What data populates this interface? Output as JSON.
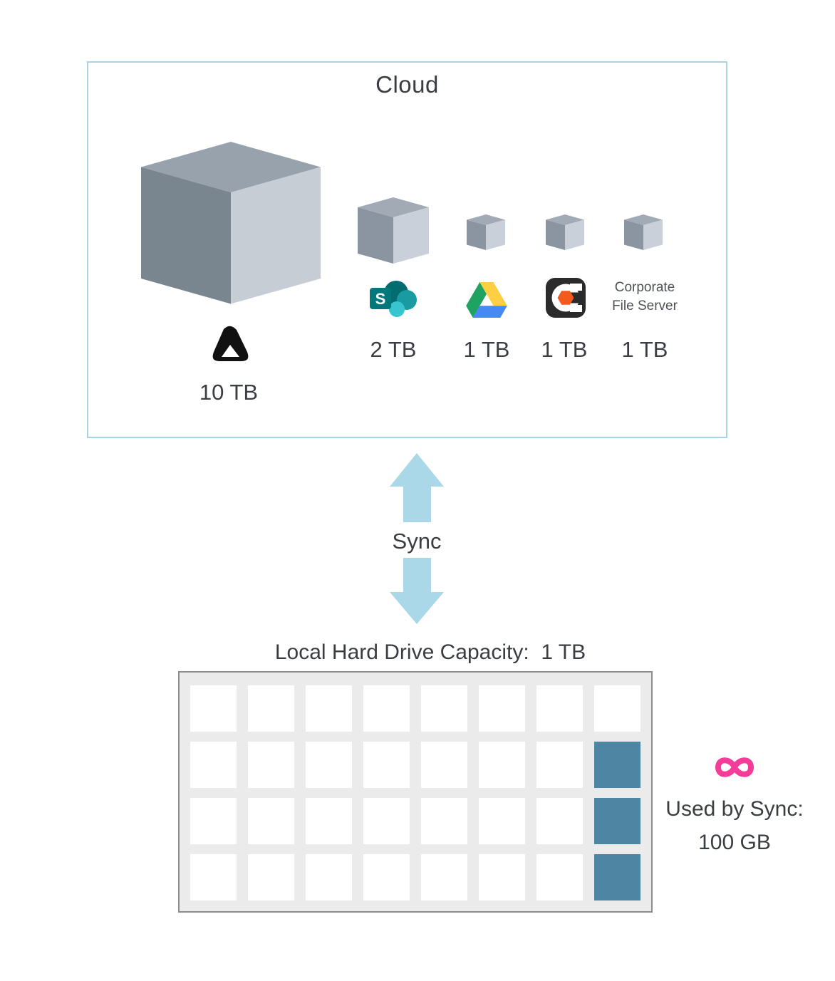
{
  "cloud": {
    "title": "Cloud",
    "providers": [
      {
        "name": "primary-cloud",
        "icon": "delta-triangle-logo",
        "capacity": "10 TB",
        "cube_size": "xl"
      },
      {
        "name": "sharepoint",
        "icon": "sharepoint-logo",
        "capacity": "2 TB",
        "cube_size": "md"
      },
      {
        "name": "google-drive",
        "icon": "google-drive-logo",
        "capacity": "1 TB",
        "cube_size": "sm"
      },
      {
        "name": "c-hexagon-app",
        "icon": "c-hexagon-logo",
        "capacity": "1 TB",
        "cube_size": "sm"
      },
      {
        "name": "corporate-file-server",
        "label": "Corporate File Server",
        "capacity": "1 TB",
        "cube_size": "sm"
      }
    ]
  },
  "sync": {
    "label": "Sync",
    "icon": "double-vertical-arrow-icon"
  },
  "local_drive": {
    "title": "Local Hard Drive Capacity:  1 TB",
    "grid": {
      "columns": 8,
      "rows": 4,
      "used_cells": [
        [
          2,
          8
        ],
        [
          3,
          8
        ],
        [
          4,
          8
        ]
      ]
    },
    "note": {
      "icon": "infinity-icon",
      "line1": "Used by Sync:",
      "line2": "100 GB"
    }
  },
  "colors": {
    "text": "#3a3d42",
    "cloud_border": "#a7d5e6",
    "arrow_blue": "#abd8e8",
    "grid_bg": "#ebebeb",
    "grid_border": "#8d8d8d",
    "used_cell_blue": "#4e85a2",
    "infinity_pink": "#f43c98",
    "cube_top": "#98a2ad",
    "cube_left": "#79858f",
    "cube_right": "#c6cdd5",
    "cube_small_top": "#a2abb5",
    "cube_small_left": "#8a95a1",
    "cube_small_right": "#cad0d9",
    "sharepoint_dark": "#036c70",
    "sharepoint_mid": "#1a9ba1",
    "sharepoint_light": "#37c6d0",
    "sharepoint_square": "#03787c",
    "drive_green": "#1ea362",
    "drive_yellow": "#fecf42",
    "drive_blue": "#4688f4",
    "c_app_black": "#2b2b2b",
    "c_app_orange": "#f25a1e",
    "delta_black": "#111111"
  }
}
